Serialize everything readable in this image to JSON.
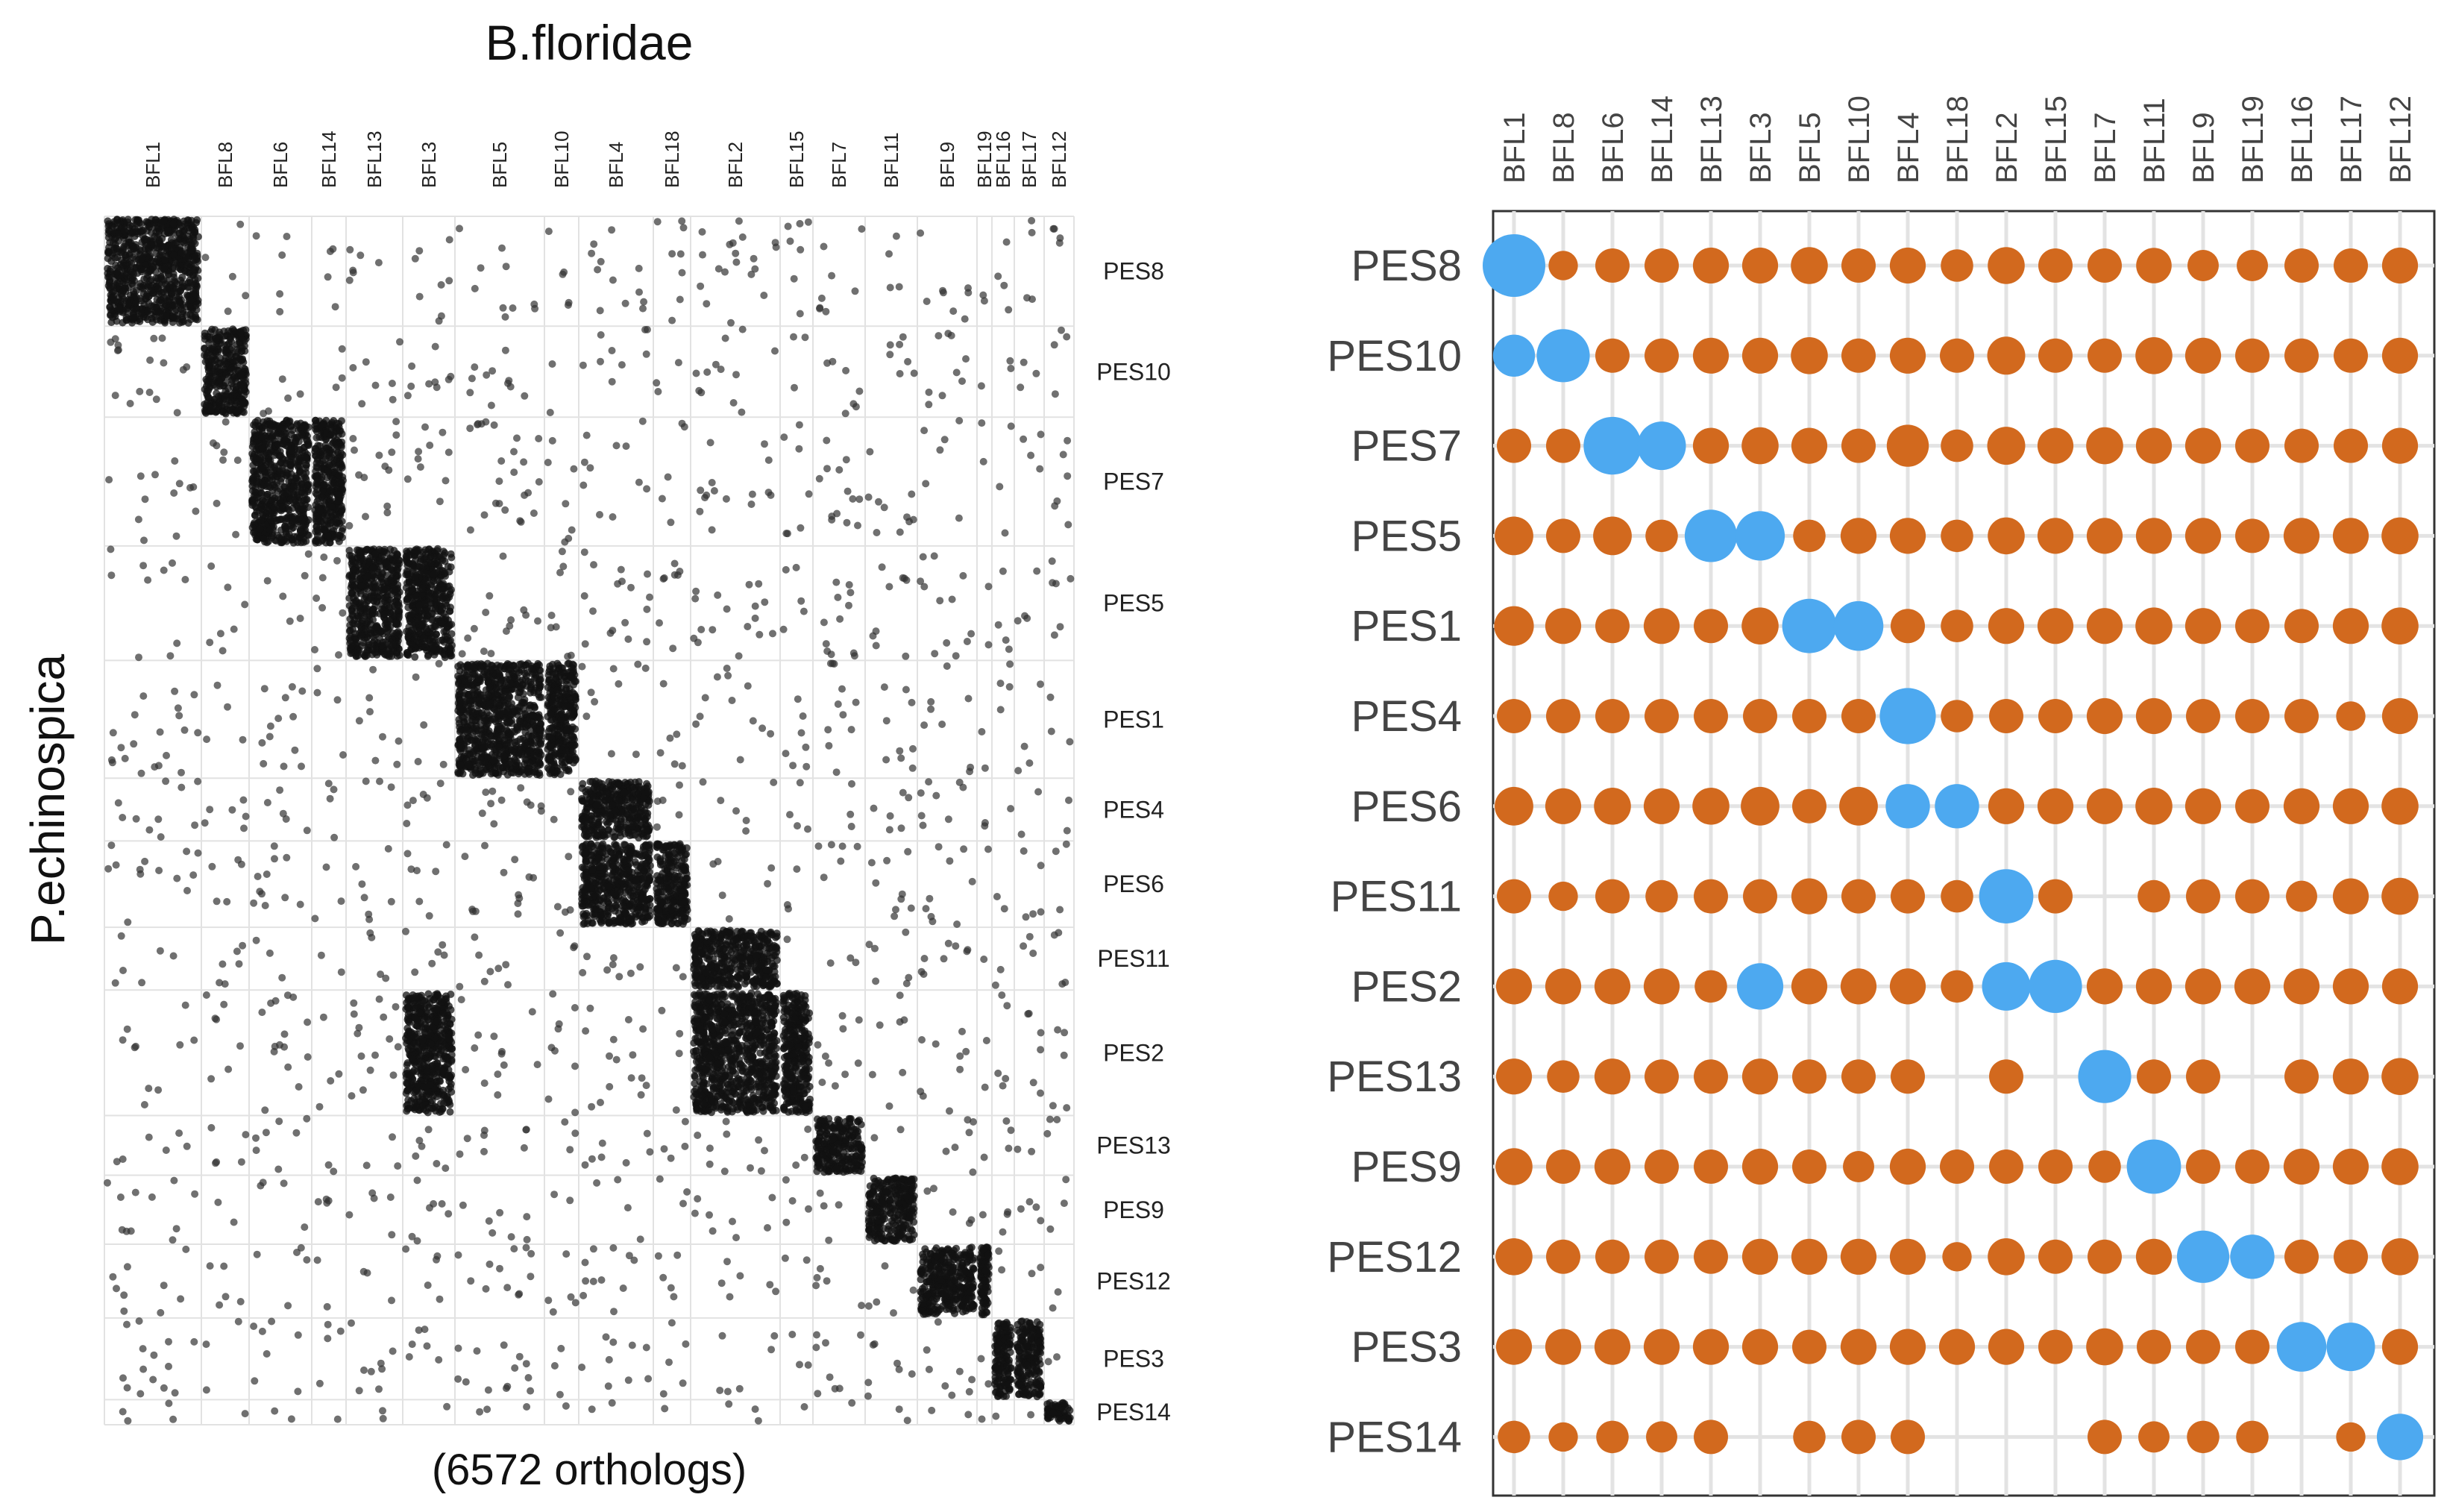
{
  "left_panel": {
    "title": "B.floridae",
    "ylabel": "P.echinospica",
    "caption": "(6572 orthologs)"
  },
  "chart_data": [
    {
      "type": "scatter",
      "panel": "left",
      "title": "B.floridae",
      "xlabel": "(6572 orthologs)",
      "ylabel": "P.echinospica",
      "x_categories": [
        "BFL1",
        "BFL8",
        "BFL6",
        "BFL14",
        "BFL13",
        "BFL3",
        "BFL5",
        "BFL10",
        "BFL4",
        "BFL18",
        "BFL2",
        "BFL15",
        "BFL7",
        "BFL11",
        "BFL9",
        "BFL19",
        "BFL16",
        "BFL17",
        "BFL12"
      ],
      "x_weights": [
        65,
        32,
        42,
        23,
        38,
        35,
        60,
        23,
        50,
        25,
        60,
        22,
        35,
        35,
        40,
        10,
        15,
        20,
        20
      ],
      "y_categories": [
        "PES8",
        "PES10",
        "PES7",
        "PES5",
        "PES1",
        "PES4",
        "PES6",
        "PES11",
        "PES2",
        "PES13",
        "PES9",
        "PES12",
        "PES3",
        "PES14"
      ],
      "y_weights": [
        70,
        58,
        82,
        73,
        75,
        40,
        55,
        40,
        80,
        38,
        44,
        47,
        52,
        16
      ],
      "dense_blocks": [
        [
          "PES8",
          "BFL1"
        ],
        [
          "PES10",
          "BFL8"
        ],
        [
          "PES7",
          "BFL6"
        ],
        [
          "PES7",
          "BFL14"
        ],
        [
          "PES5",
          "BFL13"
        ],
        [
          "PES5",
          "BFL3"
        ],
        [
          "PES1",
          "BFL5"
        ],
        [
          "PES1",
          "BFL10"
        ],
        [
          "PES4",
          "BFL4"
        ],
        [
          "PES6",
          "BFL4"
        ],
        [
          "PES6",
          "BFL18"
        ],
        [
          "PES11",
          "BFL2"
        ],
        [
          "PES2",
          "BFL2"
        ],
        [
          "PES2",
          "BFL15"
        ],
        [
          "PES2",
          "BFL3"
        ],
        [
          "PES13",
          "BFL7"
        ],
        [
          "PES9",
          "BFL11"
        ],
        [
          "PES12",
          "BFL9"
        ],
        [
          "PES12",
          "BFL19"
        ],
        [
          "PES3",
          "BFL16"
        ],
        [
          "PES3",
          "BFL17"
        ],
        [
          "PES14",
          "BFL12"
        ]
      ],
      "grid": true
    },
    {
      "type": "dot",
      "panel": "right",
      "x_categories": [
        "BFL1",
        "BFL8",
        "BFL6",
        "BFL14",
        "BFL13",
        "BFL3",
        "BFL5",
        "BFL10",
        "BFL4",
        "BFL18",
        "BFL2",
        "BFL15",
        "BFL7",
        "BFL11",
        "BFL9",
        "BFL19",
        "BFL16",
        "BFL17",
        "BFL12"
      ],
      "y_categories": [
        "PES8",
        "PES10",
        "PES7",
        "PES5",
        "PES1",
        "PES4",
        "PES6",
        "PES11",
        "PES2",
        "PES13",
        "PES9",
        "PES12",
        "PES3",
        "PES14"
      ],
      "size_scale": "relative 0-1 (dot area)",
      "sizes": [
        [
          1.0,
          0.22,
          0.3,
          0.3,
          0.33,
          0.33,
          0.35,
          0.3,
          0.33,
          0.27,
          0.35,
          0.3,
          0.3,
          0.32,
          0.25,
          0.25,
          0.3,
          0.3,
          0.33
        ],
        [
          0.45,
          0.72,
          0.3,
          0.3,
          0.33,
          0.33,
          0.35,
          0.3,
          0.33,
          0.3,
          0.37,
          0.3,
          0.3,
          0.35,
          0.33,
          0.3,
          0.3,
          0.3,
          0.33
        ],
        [
          0.3,
          0.3,
          0.85,
          0.6,
          0.33,
          0.35,
          0.33,
          0.3,
          0.45,
          0.27,
          0.37,
          0.33,
          0.35,
          0.33,
          0.33,
          0.3,
          0.3,
          0.3,
          0.33
        ],
        [
          0.38,
          0.3,
          0.38,
          0.27,
          0.7,
          0.62,
          0.27,
          0.33,
          0.33,
          0.27,
          0.35,
          0.33,
          0.33,
          0.33,
          0.33,
          0.3,
          0.33,
          0.33,
          0.35
        ],
        [
          0.4,
          0.33,
          0.3,
          0.33,
          0.3,
          0.35,
          0.75,
          0.63,
          0.3,
          0.27,
          0.33,
          0.33,
          0.33,
          0.35,
          0.33,
          0.3,
          0.3,
          0.33,
          0.35
        ],
        [
          0.3,
          0.3,
          0.3,
          0.3,
          0.3,
          0.3,
          0.3,
          0.3,
          0.8,
          0.27,
          0.3,
          0.3,
          0.33,
          0.33,
          0.3,
          0.3,
          0.3,
          0.22,
          0.33
        ],
        [
          0.38,
          0.33,
          0.35,
          0.33,
          0.35,
          0.38,
          0.3,
          0.38,
          0.5,
          0.5,
          0.33,
          0.33,
          0.33,
          0.35,
          0.33,
          0.3,
          0.33,
          0.33,
          0.35
        ],
        [
          0.3,
          0.22,
          0.3,
          0.27,
          0.3,
          0.3,
          0.33,
          0.3,
          0.3,
          0.27,
          0.75,
          0.3,
          null,
          0.27,
          0.3,
          0.3,
          0.25,
          0.33,
          0.35
        ],
        [
          0.33,
          0.33,
          0.33,
          0.33,
          0.27,
          0.55,
          0.33,
          0.33,
          0.33,
          0.27,
          0.6,
          0.72,
          0.33,
          0.33,
          0.33,
          0.33,
          0.33,
          0.33,
          0.33
        ],
        [
          0.33,
          0.27,
          0.33,
          0.3,
          0.3,
          0.33,
          0.3,
          0.3,
          0.3,
          null,
          0.3,
          null,
          0.72,
          0.3,
          0.3,
          null,
          0.3,
          0.33,
          0.35
        ],
        [
          0.35,
          0.3,
          0.33,
          0.3,
          0.3,
          0.33,
          0.3,
          0.25,
          0.33,
          0.3,
          0.3,
          0.3,
          0.27,
          0.75,
          0.3,
          0.3,
          0.33,
          0.33,
          0.35
        ],
        [
          0.35,
          0.3,
          0.3,
          0.3,
          0.3,
          0.33,
          0.33,
          0.33,
          0.33,
          0.22,
          0.35,
          0.3,
          0.3,
          0.33,
          0.7,
          0.5,
          0.3,
          0.3,
          0.35
        ],
        [
          0.33,
          0.33,
          0.33,
          0.33,
          0.33,
          0.33,
          0.3,
          0.33,
          0.33,
          0.33,
          0.33,
          0.3,
          0.35,
          0.3,
          0.3,
          0.3,
          0.63,
          0.6,
          0.33
        ],
        [
          0.27,
          0.22,
          0.27,
          0.25,
          0.3,
          null,
          0.27,
          0.3,
          0.3,
          null,
          null,
          null,
          0.3,
          0.25,
          0.27,
          0.27,
          null,
          0.22,
          0.55
        ]
      ],
      "highlight": [
        [
          "PES8",
          "BFL1"
        ],
        [
          "PES10",
          "BFL1"
        ],
        [
          "PES10",
          "BFL8"
        ],
        [
          "PES7",
          "BFL6"
        ],
        [
          "PES7",
          "BFL14"
        ],
        [
          "PES5",
          "BFL13"
        ],
        [
          "PES5",
          "BFL3"
        ],
        [
          "PES1",
          "BFL5"
        ],
        [
          "PES1",
          "BFL10"
        ],
        [
          "PES4",
          "BFL4"
        ],
        [
          "PES6",
          "BFL4"
        ],
        [
          "PES6",
          "BFL18"
        ],
        [
          "PES11",
          "BFL2"
        ],
        [
          "PES2",
          "BFL3"
        ],
        [
          "PES2",
          "BFL2"
        ],
        [
          "PES2",
          "BFL15"
        ],
        [
          "PES13",
          "BFL7"
        ],
        [
          "PES9",
          "BFL11"
        ],
        [
          "PES12",
          "BFL9"
        ],
        [
          "PES12",
          "BFL19"
        ],
        [
          "PES3",
          "BFL16"
        ],
        [
          "PES3",
          "BFL17"
        ],
        [
          "PES14",
          "BFL12"
        ]
      ],
      "colors": {
        "highlight": "#4DA9F0",
        "other": "#D2691E",
        "grid": "#E3E3E3",
        "frame": "#333333",
        "text": "#444444"
      }
    }
  ]
}
